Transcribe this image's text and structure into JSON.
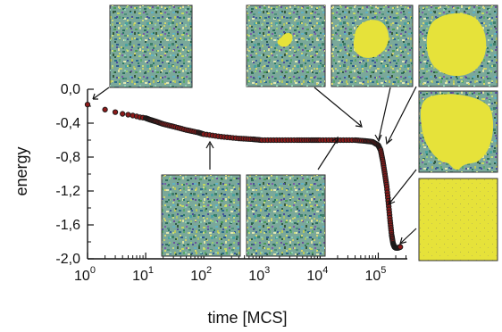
{
  "chart_data": {
    "type": "scatter",
    "xlabel": "time [MCS]",
    "ylabel": "energy",
    "xscale": "log",
    "xlim": [
      1,
      316228
    ],
    "ylim": [
      -2.0,
      0.0
    ],
    "x_ticks": [
      {
        "base": "10",
        "exp": "0",
        "value": 1
      },
      {
        "base": "10",
        "exp": "1",
        "value": 10
      },
      {
        "base": "10",
        "exp": "2",
        "value": 100
      },
      {
        "base": "10",
        "exp": "3",
        "value": 1000
      },
      {
        "base": "10",
        "exp": "4",
        "value": 10000
      },
      {
        "base": "10",
        "exp": "5",
        "value": 100000
      }
    ],
    "y_ticks": [
      {
        "label": "0,0",
        "value": 0.0
      },
      {
        "label": "-0,4",
        "value": -0.4
      },
      {
        "label": "-0,8",
        "value": -0.8
      },
      {
        "label": "-1,2",
        "value": -1.2
      },
      {
        "label": "-1,6",
        "value": -1.6
      },
      {
        "label": "-2,0",
        "value": -2.0
      }
    ],
    "grid": false,
    "legend": "none",
    "marker_fill": "#8b1a1a",
    "marker_edge": "#1a1a1a",
    "series": [
      {
        "x": [
          1,
          2,
          3,
          4,
          5,
          6,
          7,
          8,
          9,
          10,
          12,
          15,
          20,
          30,
          50,
          80,
          100,
          200,
          400,
          700,
          1000,
          2000,
          4000,
          7000,
          10000,
          20000,
          40000,
          60000,
          80000,
          100000,
          110000,
          120000,
          130000,
          140000,
          150000,
          160000,
          170000,
          180000,
          190000,
          200000,
          220000,
          240000
        ],
        "y": [
          -0.18,
          -0.24,
          -0.27,
          -0.29,
          -0.3,
          -0.31,
          -0.32,
          -0.33,
          -0.335,
          -0.34,
          -0.36,
          -0.38,
          -0.41,
          -0.44,
          -0.48,
          -0.51,
          -0.53,
          -0.56,
          -0.58,
          -0.59,
          -0.6,
          -0.6,
          -0.6,
          -0.6,
          -0.6,
          -0.6,
          -0.6,
          -0.61,
          -0.62,
          -0.66,
          -0.72,
          -0.85,
          -1.0,
          -1.15,
          -1.35,
          -1.55,
          -1.72,
          -1.82,
          -1.86,
          -1.87,
          -1.87,
          -1.86
        ]
      }
    ]
  },
  "snapshots": [
    {
      "id": "t1",
      "kind": "random",
      "arrow_to": {
        "x": 1,
        "y": -0.18
      }
    },
    {
      "id": "t2",
      "kind": "random",
      "arrow_to": {
        "x": 120,
        "y": -0.55
      }
    },
    {
      "id": "t3",
      "kind": "random",
      "arrow_to": {
        "x": 18000,
        "y": -0.6
      }
    },
    {
      "id": "t4",
      "kind": "nucleus-small",
      "arrow_to": {
        "x": 70000,
        "y": -0.6
      }
    },
    {
      "id": "t5",
      "kind": "nucleus-medium",
      "arrow_to": {
        "x": 110000,
        "y": -0.72
      }
    },
    {
      "id": "t6",
      "kind": "nucleus-large",
      "arrow_to": {
        "x": 130000,
        "y": -0.95
      }
    },
    {
      "id": "t7",
      "kind": "nucleus-huge",
      "arrow_to": {
        "x": 150000,
        "y": -1.4
      }
    },
    {
      "id": "t8",
      "kind": "yellow",
      "arrow_to": {
        "x": 220000,
        "y": -1.86
      }
    }
  ],
  "colors": {
    "axis": "#111111",
    "yellow": "#e6e23a"
  }
}
